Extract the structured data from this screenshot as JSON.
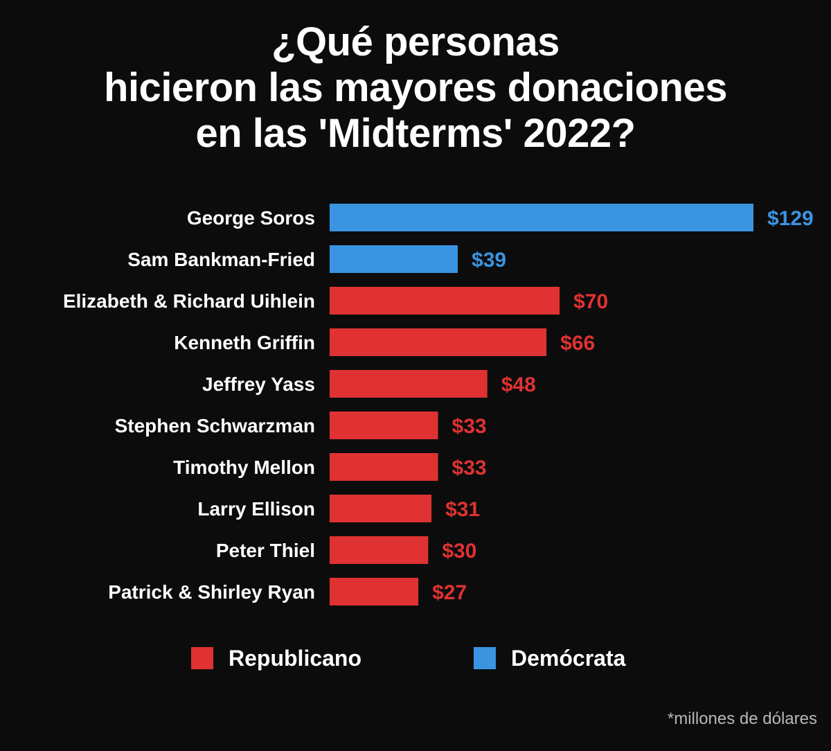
{
  "title_lines": [
    "¿Qué personas",
    "hicieron las mayores donaciones",
    "en las 'Midterms' 2022?"
  ],
  "colors": {
    "background": "#0c0c0c",
    "republicano": "#e03232",
    "democrata": "#3a94e0",
    "label": "#ffffff"
  },
  "chart_data": {
    "type": "bar",
    "orientation": "horizontal",
    "categories": [
      "George Soros",
      "Sam Bankman-Fried",
      "Elizabeth & Richard Uihlein",
      "Kenneth Griffin",
      "Jeffrey Yass",
      "Stephen Schwarzman",
      "Timothy Mellon",
      "Larry Ellison",
      "Peter Thiel",
      "Patrick & Shirley Ryan"
    ],
    "values": [
      129,
      39,
      70,
      66,
      48,
      33,
      33,
      31,
      30,
      27
    ],
    "value_labels": [
      "$129",
      "$39",
      "$70",
      "$66",
      "$48",
      "$33",
      "$33",
      "$31",
      "$30",
      "$27"
    ],
    "party": [
      "Demócrata",
      "Demócrata",
      "Republicano",
      "Republicano",
      "Republicano",
      "Republicano",
      "Republicano",
      "Republicano",
      "Republicano",
      "Republicano"
    ],
    "legend": [
      {
        "label": "Republicano",
        "color": "#e03232"
      },
      {
        "label": "Demócrata",
        "color": "#3a94e0"
      }
    ],
    "legend_position": "bottom",
    "grid": false
  },
  "footnote": "*millones de dólares"
}
